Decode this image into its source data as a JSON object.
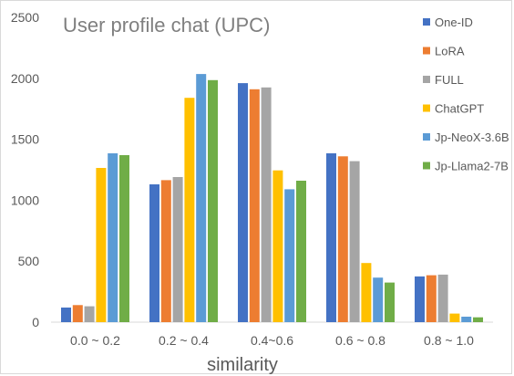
{
  "chart_data": {
    "type": "bar",
    "title": "User profile chat (UPC)",
    "xlabel": "similarity",
    "ylabel": "",
    "ylim": [
      0,
      2500
    ],
    "yticks": [
      0,
      500,
      1000,
      1500,
      2000,
      2500
    ],
    "categories": [
      "0.0 ~ 0.2",
      "0.2 ~ 0.4",
      "0.4~0.6",
      "0.6 ~ 0.8",
      "0.8 ~ 1.0"
    ],
    "series": [
      {
        "name": "One-ID",
        "color": "#4472c4",
        "values": [
          120,
          1130,
          1960,
          1385,
          375
        ]
      },
      {
        "name": "LoRA",
        "color": "#ed7d31",
        "values": [
          140,
          1165,
          1910,
          1360,
          385
        ]
      },
      {
        "name": "FULL",
        "color": "#a5a5a5",
        "values": [
          130,
          1190,
          1925,
          1320,
          390
        ]
      },
      {
        "name": "ChatGPT",
        "color": "#ffc000",
        "values": [
          1265,
          1840,
          1245,
          485,
          70
        ]
      },
      {
        "name": "Jp-NeoX-3.6B",
        "color": "#5b9bd5",
        "values": [
          1385,
          2035,
          1090,
          365,
          45
        ]
      },
      {
        "name": "Jp-Llama2-7B",
        "color": "#70ad47",
        "values": [
          1370,
          1985,
          1160,
          325,
          40
        ]
      }
    ],
    "grid": false,
    "legend_position": "right"
  }
}
